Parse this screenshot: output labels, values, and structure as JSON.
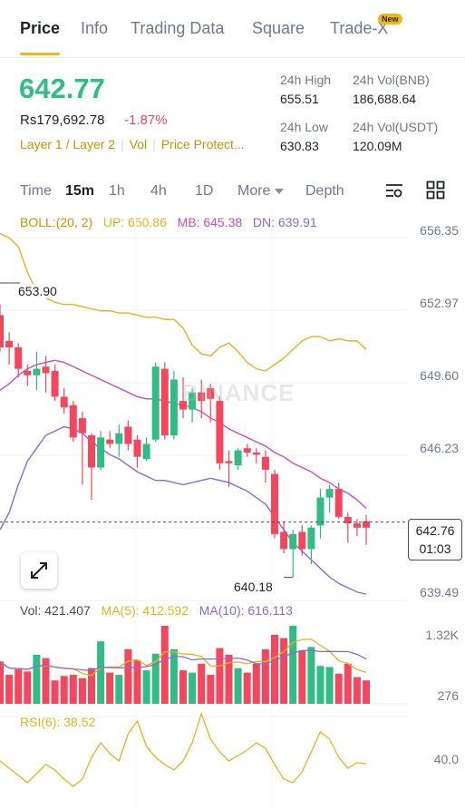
{
  "tabs": [
    {
      "label": "Price"
    },
    {
      "label": "Info"
    },
    {
      "label": "Trading Data"
    },
    {
      "label": "Square"
    },
    {
      "label": "Trade-X"
    }
  ],
  "new_badge": "New",
  "price": {
    "last": "642.77",
    "fiat": "Rs179,692.78",
    "change": "-1.87%"
  },
  "tags": [
    "Layer 1 / Layer 2",
    "Vol",
    "Price Protect..."
  ],
  "stats": {
    "high_label": "24h High",
    "high": "655.51",
    "low_label": "24h Low",
    "low": "630.83",
    "vol_bnb_label": "24h Vol(BNB)",
    "vol_bnb": "186,688.64",
    "vol_usdt_label": "24h Vol(USDT)",
    "vol_usdt": "120.09M"
  },
  "timeframes": [
    "Time",
    "15m",
    "1h",
    "4h",
    "1D",
    "More",
    "Depth"
  ],
  "active_timeframe": "15m",
  "boll": {
    "label": "BOLL:(20, 2)",
    "up": "UP: 650.86",
    "mb": "MB: 645.38",
    "dn": "DN: 639.91"
  },
  "vol_ind": {
    "vol": "Vol: 421.407",
    "ma5": "MA(5): 412.592",
    "ma10": "MA(10): 616.113"
  },
  "rsi_ind": {
    "label": "RSI(6): 38.52"
  },
  "y_axis": [
    "656.35",
    "652.97",
    "649.60",
    "646.23",
    "639.49"
  ],
  "vol_axis": [
    "1.32K",
    "276"
  ],
  "rsi_axis": [
    "40.0"
  ],
  "last_price_box": {
    "price": "642.76",
    "countdown": "01:03"
  },
  "high_marker": "653.90",
  "low_marker": "640.18",
  "watermark": "BINANCE",
  "colors": {
    "up": "#2ebd85",
    "down": "#f6465d",
    "boll_up": "#e6b31e",
    "boll_mb": "#c94fb8",
    "boll_dn": "#8a6bd0",
    "accent": "#f0b90b"
  },
  "chart_data": {
    "type": "candlestick",
    "price_axis_ticks": [
      656.35,
      652.97,
      649.6,
      646.23,
      639.49
    ],
    "candles": [
      {
        "o": 652.4,
        "h": 652.9,
        "c": 650.9,
        "l": 650.7
      },
      {
        "o": 651.2,
        "h": 651.6,
        "c": 650.9,
        "l": 650.1
      },
      {
        "o": 650.9,
        "h": 651.1,
        "c": 649.9,
        "l": 649.5
      },
      {
        "o": 649.8,
        "h": 650.1,
        "c": 649.6,
        "l": 649.1
      },
      {
        "o": 649.6,
        "h": 650.7,
        "c": 649.9,
        "l": 648.9
      },
      {
        "o": 650.0,
        "h": 650.5,
        "c": 649.7,
        "l": 648.8
      },
      {
        "o": 649.8,
        "h": 650.1,
        "c": 648.6,
        "l": 648.4
      },
      {
        "o": 648.6,
        "h": 649.0,
        "c": 648.1,
        "l": 647.8
      },
      {
        "o": 648.2,
        "h": 648.4,
        "c": 646.7,
        "l": 646.5
      },
      {
        "o": 647.6,
        "h": 647.9,
        "c": 646.9,
        "l": 644.5
      },
      {
        "o": 646.8,
        "h": 646.9,
        "c": 645.3,
        "l": 643.8
      },
      {
        "o": 645.3,
        "h": 647.0,
        "c": 646.7,
        "l": 645.2
      },
      {
        "o": 646.6,
        "h": 647.0,
        "c": 646.4,
        "l": 646.2
      },
      {
        "o": 646.4,
        "h": 647.3,
        "c": 646.9,
        "l": 645.8
      },
      {
        "o": 647.2,
        "h": 647.5,
        "c": 646.4,
        "l": 646.1
      },
      {
        "o": 646.6,
        "h": 646.8,
        "c": 645.8,
        "l": 645.3
      },
      {
        "o": 645.7,
        "h": 646.7,
        "c": 646.4,
        "l": 645.6
      },
      {
        "o": 646.6,
        "h": 650.2,
        "c": 650.0,
        "l": 646.5
      },
      {
        "o": 649.9,
        "h": 650.2,
        "c": 646.8,
        "l": 646.6
      },
      {
        "o": 646.8,
        "h": 649.8,
        "c": 649.4,
        "l": 646.6
      },
      {
        "o": 648.4,
        "h": 649.5,
        "c": 648.0,
        "l": 647.6
      },
      {
        "o": 648.0,
        "h": 649.0,
        "c": 648.8,
        "l": 647.4
      },
      {
        "o": 648.8,
        "h": 649.4,
        "c": 648.4,
        "l": 647.6
      },
      {
        "o": 649.0,
        "h": 649.2,
        "c": 648.5,
        "l": 647.4
      },
      {
        "o": 648.4,
        "h": 648.6,
        "c": 645.5,
        "l": 645.2
      },
      {
        "o": 645.6,
        "h": 646.1,
        "c": 645.5,
        "l": 644.4
      },
      {
        "o": 645.4,
        "h": 646.2,
        "c": 646.1,
        "l": 645.2
      },
      {
        "o": 646.2,
        "h": 646.4,
        "c": 646.0,
        "l": 645.8
      },
      {
        "o": 646.0,
        "h": 646.2,
        "c": 645.9,
        "l": 645.5
      },
      {
        "o": 645.8,
        "h": 646.1,
        "c": 645.2,
        "l": 644.6
      },
      {
        "o": 645.0,
        "h": 645.2,
        "c": 642.2,
        "l": 642.0
      },
      {
        "o": 642.3,
        "h": 642.8,
        "c": 641.5,
        "l": 641.3
      },
      {
        "o": 641.5,
        "h": 642.4,
        "c": 642.2,
        "l": 640.2
      },
      {
        "o": 642.3,
        "h": 642.6,
        "c": 641.5,
        "l": 641.2
      },
      {
        "o": 641.5,
        "h": 642.6,
        "c": 642.5,
        "l": 640.8
      },
      {
        "o": 642.6,
        "h": 644.3,
        "c": 643.9,
        "l": 642.0
      },
      {
        "o": 643.9,
        "h": 644.5,
        "c": 644.3,
        "l": 643.2
      },
      {
        "o": 644.3,
        "h": 644.6,
        "c": 643.0,
        "l": 642.9
      },
      {
        "o": 643.0,
        "h": 643.2,
        "c": 642.7,
        "l": 641.8
      },
      {
        "o": 642.7,
        "h": 642.9,
        "c": 642.5,
        "l": 642.1
      },
      {
        "o": 642.8,
        "h": 643.1,
        "c": 642.5,
        "l": 641.7
      }
    ],
    "volume": {
      "ma5_label": "MA(5): 412.592",
      "ma10_label": "MA(10): 616.113",
      "last": 421.407,
      "axis_ticks": [
        1320,
        276
      ]
    },
    "rsi": {
      "period": 6,
      "last": 38.52,
      "axis_ticks": [
        40.0
      ]
    },
    "annotations": {
      "high": 653.9,
      "low": 640.18,
      "last": 642.76
    }
  }
}
